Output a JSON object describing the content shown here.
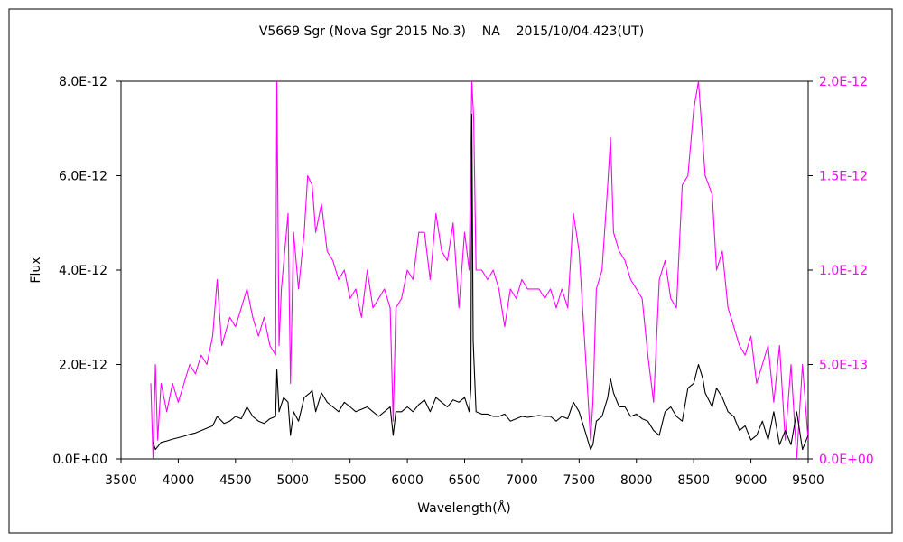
{
  "chart_data": {
    "type": "line",
    "title": "V5669 Sgr (Nova Sgr 2015 No.3)    NA    2015/10/04.423(UT)",
    "xlabel": "Wavelength(Å)",
    "ylabel": "Flux",
    "y2label": "",
    "xlim": [
      3500,
      9500
    ],
    "ylim": [
      0,
      8e-12
    ],
    "y2lim": [
      0,
      2e-12
    ],
    "x_ticks": [
      "3500",
      "4000",
      "4500",
      "5000",
      "5500",
      "6000",
      "6500",
      "7000",
      "7500",
      "8000",
      "8500",
      "9000",
      "9500"
    ],
    "y_ticks": [
      "0.0E+00",
      "2.0E-12",
      "4.0E-12",
      "6.0E-12",
      "8.0E-12"
    ],
    "y2_ticks": [
      "0.0E+00",
      "5.0E-13",
      "1.0E-12",
      "1.5E-12",
      "2.0E-12"
    ],
    "grid": false,
    "colors": {
      "primary": "#000000",
      "secondary": "#ff00ff"
    },
    "series": [
      {
        "axis": "left",
        "color": "#000000",
        "x": [
          3780,
          3800,
          3850,
          3900,
          3950,
          4000,
          4050,
          4100,
          4150,
          4200,
          4250,
          4300,
          4340,
          4400,
          4450,
          4500,
          4550,
          4600,
          4650,
          4700,
          4750,
          4800,
          4850,
          4861,
          4880,
          4920,
          4959,
          4980,
          5007,
          5050,
          5100,
          5150,
          5169,
          5200,
          5250,
          5300,
          5350,
          5400,
          5450,
          5500,
          5550,
          5600,
          5650,
          5700,
          5750,
          5800,
          5850,
          5876,
          5900,
          5950,
          6000,
          6050,
          6100,
          6150,
          6200,
          6250,
          6300,
          6350,
          6400,
          6450,
          6500,
          6540,
          6555,
          6563,
          6575,
          6600,
          6650,
          6700,
          6750,
          6800,
          6850,
          6900,
          6950,
          7000,
          7050,
          7100,
          7150,
          7200,
          7250,
          7300,
          7350,
          7400,
          7450,
          7500,
          7550,
          7600,
          7620,
          7650,
          7700,
          7750,
          7774,
          7800,
          7850,
          7900,
          7950,
          8000,
          8050,
          8100,
          8150,
          8200,
          8250,
          8300,
          8350,
          8400,
          8450,
          8500,
          8542,
          8580,
          8600,
          8662,
          8700,
          8750,
          8800,
          8850,
          8900,
          8950,
          9000,
          9050,
          9100,
          9150,
          9200,
          9250,
          9300,
          9350,
          9400,
          9450,
          9500
        ],
        "values": [
          3.5e-13,
          2e-13,
          3.5e-13,
          3.8e-13,
          4.2e-13,
          4.5e-13,
          4.8e-13,
          5.2e-13,
          5.5e-13,
          6e-13,
          6.5e-13,
          7e-13,
          9e-13,
          7.5e-13,
          8e-13,
          9e-13,
          8.5e-13,
          1.1e-12,
          9e-13,
          8e-13,
          7.5e-13,
          8.5e-13,
          9e-13,
          1.9e-12,
          1e-12,
          1.3e-12,
          1.2e-12,
          5e-13,
          1e-12,
          8e-13,
          1.3e-12,
          1.4e-12,
          1.45e-12,
          1e-12,
          1.4e-12,
          1.2e-12,
          1.1e-12,
          1e-12,
          1.2e-12,
          1.1e-12,
          1e-12,
          1.05e-12,
          1.1e-12,
          1e-12,
          9e-13,
          1e-12,
          1.1e-12,
          5e-13,
          1e-12,
          1e-12,
          1.1e-12,
          1e-12,
          1.15e-12,
          1.25e-12,
          1e-12,
          1.3e-12,
          1.2e-12,
          1.1e-12,
          1.25e-12,
          1.2e-12,
          1.3e-12,
          1e-12,
          1.5e-12,
          7.3e-12,
          2.5e-12,
          1e-12,
          9.5e-13,
          9.5e-13,
          9e-13,
          9e-13,
          9.5e-13,
          8e-13,
          8.5e-13,
          9e-13,
          8.8e-13,
          9e-13,
          9.2e-13,
          9e-13,
          9e-13,
          8e-13,
          9e-13,
          8.5e-13,
          1.2e-12,
          1e-12,
          6e-13,
          2e-13,
          3e-13,
          8e-13,
          9e-13,
          1.3e-12,
          1.7e-12,
          1.4e-12,
          1.1e-12,
          1.1e-12,
          9e-13,
          9.5e-13,
          8.5e-13,
          8e-13,
          6e-13,
          5e-13,
          1e-12,
          1.1e-12,
          9e-13,
          8e-13,
          1.5e-12,
          1.6e-12,
          2e-12,
          1.7e-12,
          1.4e-12,
          1.1e-12,
          1.5e-12,
          1.3e-12,
          1e-12,
          9e-13,
          6e-13,
          7e-13,
          4e-13,
          5e-13,
          8e-13,
          4e-13,
          1e-12,
          3e-13,
          6e-13,
          3e-13,
          1e-12,
          2e-13,
          5e-13
        ]
      },
      {
        "axis": "right",
        "color": "#ff00ff",
        "x": [
          3760,
          3780,
          3800,
          3820,
          3850,
          3900,
          3950,
          4000,
          4050,
          4100,
          4150,
          4200,
          4250,
          4300,
          4340,
          4380,
          4450,
          4500,
          4550,
          4600,
          4650,
          4700,
          4750,
          4800,
          4850,
          4861,
          4880,
          4900,
          4959,
          4980,
          5007,
          5050,
          5100,
          5130,
          5169,
          5200,
          5250,
          5300,
          5350,
          5400,
          5450,
          5500,
          5550,
          5600,
          5650,
          5700,
          5750,
          5800,
          5850,
          5876,
          5900,
          5950,
          6000,
          6050,
          6100,
          6150,
          6200,
          6250,
          6300,
          6350,
          6400,
          6450,
          6500,
          6540,
          6563,
          6580,
          6600,
          6650,
          6700,
          6750,
          6800,
          6850,
          6900,
          6950,
          7000,
          7050,
          7100,
          7150,
          7200,
          7250,
          7300,
          7350,
          7400,
          7450,
          7500,
          7550,
          7600,
          7620,
          7650,
          7700,
          7750,
          7774,
          7800,
          7850,
          7900,
          7950,
          8000,
          8050,
          8100,
          8150,
          8200,
          8250,
          8300,
          8350,
          8400,
          8450,
          8500,
          8542,
          8600,
          8662,
          8700,
          8750,
          8800,
          8850,
          8900,
          8950,
          9000,
          9050,
          9100,
          9150,
          9200,
          9250,
          9300,
          9350,
          9400,
          9450,
          9500
        ],
        "values": [
          4e-13,
          0.0,
          5e-13,
          1e-13,
          4e-13,
          2.5e-13,
          4e-13,
          3e-13,
          4e-13,
          5e-13,
          4.5e-13,
          5.5e-13,
          5e-13,
          6.5e-13,
          9.5e-13,
          6e-13,
          7.5e-13,
          7e-13,
          8e-13,
          9e-13,
          7.5e-13,
          6.5e-13,
          7.5e-13,
          6e-13,
          5.5e-13,
          2e-12,
          6e-13,
          9e-13,
          1.3e-12,
          4e-13,
          1.2e-12,
          9e-13,
          1.2e-12,
          1.5e-12,
          1.45e-12,
          1.2e-12,
          1.35e-12,
          1.1e-12,
          1.05e-12,
          9.5e-13,
          1e-12,
          8.5e-13,
          9e-13,
          7.5e-13,
          1e-12,
          8e-13,
          8.5e-13,
          9e-13,
          8e-13,
          2e-13,
          8e-13,
          8.5e-13,
          1e-12,
          9.5e-13,
          1.2e-12,
          1.2e-12,
          9.5e-13,
          1.3e-12,
          1.1e-12,
          1.05e-12,
          1.25e-12,
          8e-13,
          1.2e-12,
          1e-12,
          2e-12,
          1.8e-12,
          1e-12,
          1e-12,
          9.5e-13,
          1e-12,
          9e-13,
          7e-13,
          9e-13,
          8.5e-13,
          9.5e-13,
          9e-13,
          9e-13,
          9e-13,
          8.5e-13,
          9e-13,
          8e-13,
          9e-13,
          8e-13,
          1.3e-12,
          1.1e-12,
          6e-13,
          1e-13,
          3e-13,
          9e-13,
          1e-12,
          1.45e-12,
          1.7e-12,
          1.2e-12,
          1.1e-12,
          1.05e-12,
          9.5e-13,
          9e-13,
          8.5e-13,
          5.5e-13,
          3e-13,
          9.5e-13,
          1.05e-12,
          8.5e-13,
          8e-13,
          1.45e-12,
          1.5e-12,
          1.85e-12,
          2e-12,
          1.5e-12,
          1.4e-12,
          1e-12,
          1.1e-12,
          8e-13,
          7e-13,
          6e-13,
          5.5e-13,
          6.5e-13,
          4e-13,
          5e-13,
          6e-13,
          3e-13,
          6e-13,
          1e-13,
          5e-13,
          0.0,
          5e-13,
          1e-13
        ]
      }
    ]
  }
}
